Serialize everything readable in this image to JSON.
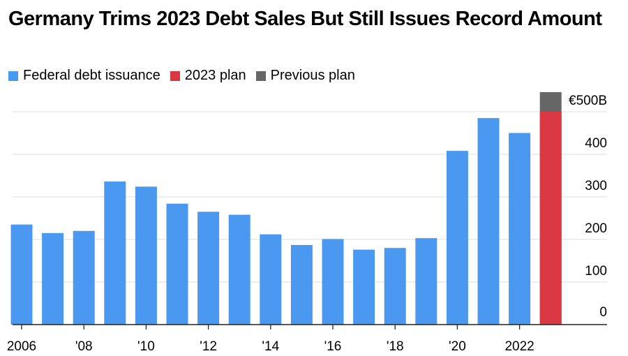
{
  "chart_data": {
    "type": "bar",
    "title": "Germany Trims 2023 Debt Sales But Still Issues Record Amount",
    "categories": [
      "2006",
      "2007",
      "2008",
      "2009",
      "2010",
      "2011",
      "2012",
      "2013",
      "2014",
      "2015",
      "2016",
      "2017",
      "2018",
      "2019",
      "2020",
      "2021",
      "2022",
      "2023"
    ],
    "x_tick_labels": [
      {
        "category": "2006",
        "label": "2006"
      },
      {
        "category": "2008",
        "label": "'08"
      },
      {
        "category": "2010",
        "label": "'10"
      },
      {
        "category": "2012",
        "label": "'12"
      },
      {
        "category": "2014",
        "label": "'14"
      },
      {
        "category": "2016",
        "label": "'16"
      },
      {
        "category": "2018",
        "label": "'18"
      },
      {
        "category": "2020",
        "label": "'20"
      },
      {
        "category": "2022",
        "label": "2022"
      }
    ],
    "series": [
      {
        "name": "Federal debt issuance",
        "color": "#4a98f0",
        "values": [
          235,
          215,
          220,
          336,
          324,
          284,
          265,
          258,
          212,
          187,
          201,
          176,
          180,
          203,
          408,
          485,
          450,
          null
        ]
      },
      {
        "name": "2023 plan",
        "color": "#d93843",
        "values": [
          null,
          null,
          null,
          null,
          null,
          null,
          null,
          null,
          null,
          null,
          null,
          null,
          null,
          null,
          null,
          null,
          null,
          500
        ]
      },
      {
        "name": "Previous plan",
        "color": "#666666",
        "values": [
          null,
          null,
          null,
          null,
          null,
          null,
          null,
          null,
          null,
          null,
          null,
          null,
          null,
          null,
          null,
          null,
          null,
          546
        ]
      }
    ],
    "y_ticks": [
      0,
      100,
      200,
      300,
      400,
      500
    ],
    "y_tick_labels": [
      "0",
      "100",
      "200",
      "300",
      "400",
      "€500B"
    ],
    "ylim": [
      0,
      550
    ],
    "y_axis_position": "right",
    "grid": true,
    "legend_position": "top-left"
  }
}
